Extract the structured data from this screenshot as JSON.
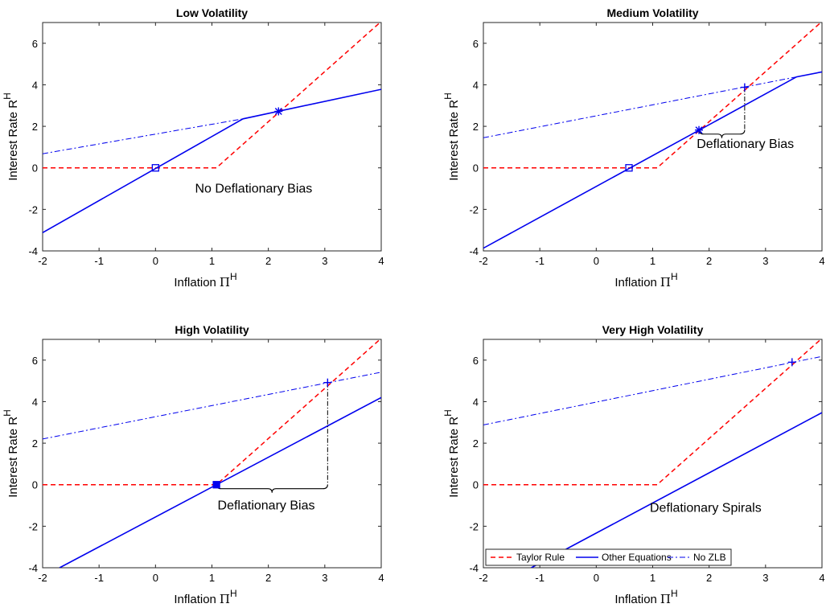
{
  "colors": {
    "taylor": "#ff0000",
    "other": "#0000ee",
    "nozlb": "#0000ee",
    "axis": "#262626"
  },
  "legend": {
    "placement": "lower-left",
    "entries": [
      "Taylor Rule",
      "Other Equations",
      "No ZLB"
    ]
  },
  "chart_data": [
    {
      "type": "line",
      "title": "Low Volatility",
      "xlabel": "Inflation",
      "xlabel_pi": "Π",
      "xlabel_sup": "H",
      "ylabel": "Interest Rate R",
      "ylabel_sup": "H",
      "xlim": [
        -2,
        4
      ],
      "ylim": [
        -4,
        7
      ],
      "xticks": [
        "-2",
        "-1",
        "0",
        "1",
        "2",
        "3",
        "4"
      ],
      "yticks": [
        "-4",
        "-2",
        "0",
        "2",
        "4",
        "6"
      ],
      "series": [
        {
          "name": "Taylor Rule",
          "style": "dashed",
          "x": [
            -2,
            1.08,
            4
          ],
          "y": [
            0,
            0,
            7.05
          ]
        },
        {
          "name": "Other Equations",
          "style": "solid",
          "x": [
            -2,
            1.55,
            4
          ],
          "y": [
            -3.12,
            2.36,
            3.78
          ]
        },
        {
          "name": "No ZLB",
          "style": "dashdot",
          "x": [
            -2,
            1.55
          ],
          "y": [
            0.68,
            2.36
          ]
        }
      ],
      "markers": [
        {
          "type": "square",
          "x": 0,
          "y": 0
        },
        {
          "type": "asterisk",
          "x": 2.18,
          "y": 2.72
        }
      ],
      "annotations": [
        {
          "text": "No Deflationary Bias",
          "x": 0.7,
          "y": -1.2
        }
      ],
      "bracket": null
    },
    {
      "type": "line",
      "title": "Medium Volatility",
      "xlabel": "Inflation",
      "xlabel_pi": "Π",
      "xlabel_sup": "H",
      "ylabel": "Interest Rate R",
      "ylabel_sup": "H",
      "xlim": [
        -2,
        4
      ],
      "ylim": [
        -4,
        7
      ],
      "xticks": [
        "-2",
        "-1",
        "0",
        "1",
        "2",
        "3",
        "4"
      ],
      "yticks": [
        "-4",
        "-2",
        "0",
        "2",
        "4",
        "6"
      ],
      "series": [
        {
          "name": "Taylor Rule",
          "style": "dashed",
          "x": [
            -2,
            1.08,
            4
          ],
          "y": [
            0,
            0,
            7.05
          ]
        },
        {
          "name": "Other Equations",
          "style": "solid",
          "x": [
            -2,
            3.55,
            4
          ],
          "y": [
            -3.87,
            4.38,
            4.62
          ]
        },
        {
          "name": "No ZLB",
          "style": "dashdot",
          "x": [
            -2,
            3.55
          ],
          "y": [
            1.45,
            4.38
          ]
        }
      ],
      "markers": [
        {
          "type": "square",
          "x": 0.58,
          "y": 0
        },
        {
          "type": "asterisk",
          "x": 1.82,
          "y": 1.82
        },
        {
          "type": "plus",
          "x": 2.63,
          "y": 3.88
        }
      ],
      "annotations": [
        {
          "text": "Deflationary Bias",
          "x": 1.78,
          "y": 0.95
        }
      ],
      "bracket": {
        "x1": 1.82,
        "x2": 2.63,
        "y": 1.82,
        "ytop": 3.88,
        "dir": "down"
      }
    },
    {
      "type": "line",
      "title": "High Volatility",
      "xlabel": "Inflation",
      "xlabel_pi": "Π",
      "xlabel_sup": "H",
      "ylabel": "Interest Rate R",
      "ylabel_sup": "H",
      "xlim": [
        -2,
        4
      ],
      "ylim": [
        -4,
        7
      ],
      "xticks": [
        "-2",
        "-1",
        "0",
        "1",
        "2",
        "3",
        "4"
      ],
      "yticks": [
        "-4",
        "-2",
        "0",
        "2",
        "4",
        "6"
      ],
      "series": [
        {
          "name": "Taylor Rule",
          "style": "dashed",
          "x": [
            -2,
            1.08,
            4
          ],
          "y": [
            0,
            0,
            7.05
          ]
        },
        {
          "name": "Other Equations",
          "style": "solid",
          "x": [
            -1.7,
            4
          ],
          "y": [
            -4,
            4.2
          ]
        },
        {
          "name": "No ZLB",
          "style": "dashdot",
          "x": [
            -2,
            4
          ],
          "y": [
            2.2,
            5.42
          ]
        }
      ],
      "markers": [
        {
          "type": "square-filled",
          "x": 1.08,
          "y": 0
        },
        {
          "type": "plus",
          "x": 3.05,
          "y": 4.92
        }
      ],
      "annotations": [
        {
          "text": "Deflationary Bias",
          "x": 1.1,
          "y": -1.2
        }
      ],
      "bracket": {
        "x1": 1.08,
        "x2": 3.05,
        "y": 0,
        "ytop": 4.92,
        "dir": "down"
      }
    },
    {
      "type": "line",
      "title": "Very High Volatility",
      "xlabel": "Inflation",
      "xlabel_pi": "Π",
      "xlabel_sup": "H",
      "ylabel": "Interest Rate R",
      "ylabel_sup": "H",
      "xlim": [
        -2,
        4
      ],
      "ylim": [
        -4,
        7
      ],
      "xticks": [
        "-2",
        "-1",
        "0",
        "1",
        "2",
        "3",
        "4"
      ],
      "yticks": [
        "-4",
        "-2",
        "0",
        "2",
        "4",
        "6"
      ],
      "series": [
        {
          "name": "Taylor Rule",
          "style": "dashed",
          "x": [
            -2,
            1.08,
            4
          ],
          "y": [
            0,
            0,
            7.05
          ]
        },
        {
          "name": "Other Equations",
          "style": "solid",
          "x": [
            -1.15,
            4
          ],
          "y": [
            -4,
            3.47
          ]
        },
        {
          "name": "No ZLB",
          "style": "dashdot",
          "x": [
            -2,
            4
          ],
          "y": [
            2.88,
            6.18
          ]
        }
      ],
      "markers": [
        {
          "type": "plus",
          "x": 3.47,
          "y": 5.9
        }
      ],
      "annotations": [
        {
          "text": "Deflationary Spirals",
          "x": 0.95,
          "y": -1.3
        }
      ],
      "bracket": null
    }
  ]
}
